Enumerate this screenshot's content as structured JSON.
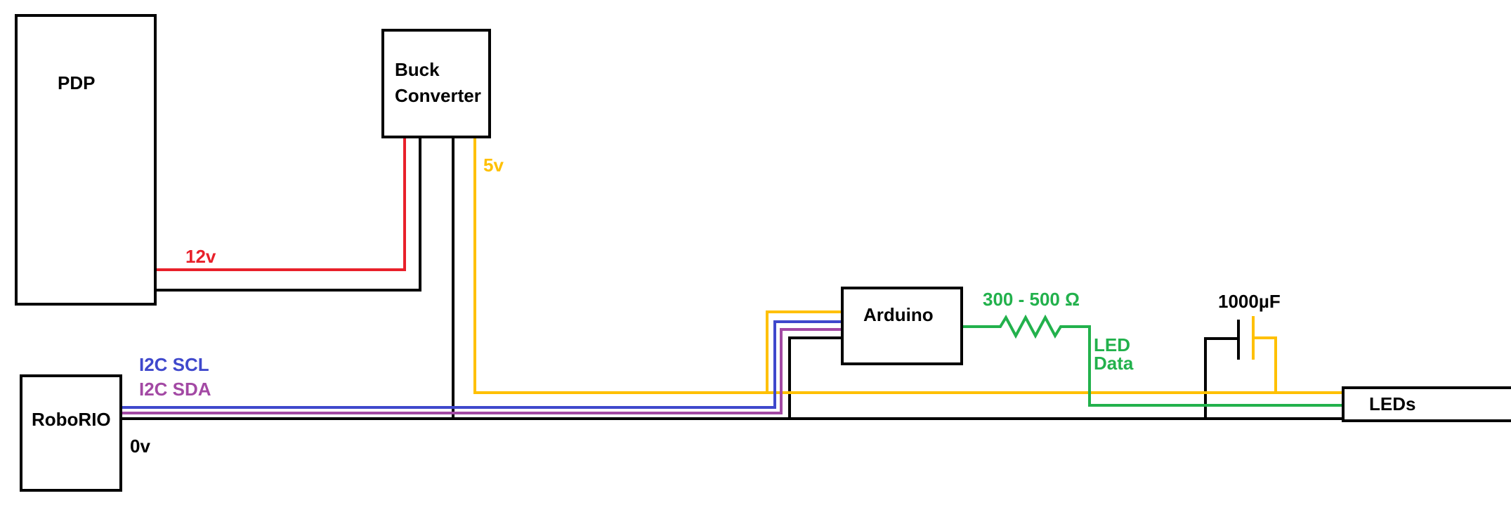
{
  "components": {
    "pdp": "PDP",
    "buck_line1": "Buck",
    "buck_line2": "Converter",
    "arduino": "Arduino",
    "roborio": "RoboRIO",
    "leds": "LEDs",
    "capacitor": "1000µF",
    "resistor": "300 - 500 Ω"
  },
  "wire_labels": {
    "v12": "12v",
    "v5": "5v",
    "i2c_scl": "I2C SCL",
    "i2c_sda": "I2C SDA",
    "ground": "0v",
    "led_data_line1": "LED",
    "led_data_line2": "Data"
  },
  "colors": {
    "power_12v": "#e8202a",
    "power_5v": "#ffc000",
    "ground": "#000000",
    "i2c_scl": "#3f48cc",
    "i2c_sda": "#a349a4",
    "led_data": "#22b14c",
    "label_black": "#000000"
  }
}
